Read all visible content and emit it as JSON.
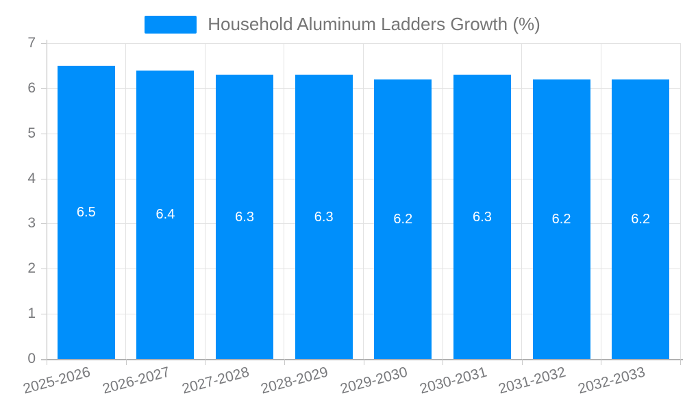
{
  "legend": {
    "label": "Household Aluminum Ladders Growth (%)"
  },
  "colors": {
    "bar": "#008FFB",
    "legend_text": "#757575",
    "axis_label": "#78797c",
    "gridline": "#e2e2e2",
    "axis_line": "#b1b1b1",
    "tick": "#c9c9c9",
    "data_label_text": "#ffffff"
  },
  "chart_data": {
    "type": "bar",
    "title": "Household Aluminum Ladders Growth (%)",
    "categories": [
      "2025-2026",
      "2026-2027",
      "2027-2028",
      "2028-2029",
      "2029-2030",
      "2030-2031",
      "2031-2032",
      "2032-2033"
    ],
    "values": [
      6.5,
      6.4,
      6.3,
      6.3,
      6.2,
      6.3,
      6.2,
      6.2
    ],
    "data_labels": [
      "6.5",
      "6.4",
      "6.3",
      "6.3",
      "6.2",
      "6.3",
      "6.2",
      "6.2"
    ],
    "series_name": "Household Aluminum Ladders Growth (%)",
    "xlabel": "",
    "ylabel": "",
    "ylim": [
      0,
      7
    ],
    "yticks": [
      0,
      1,
      2,
      3,
      4,
      5,
      6,
      7
    ],
    "grid": true,
    "legend_position": "top",
    "bar_color": "#008FFB"
  }
}
